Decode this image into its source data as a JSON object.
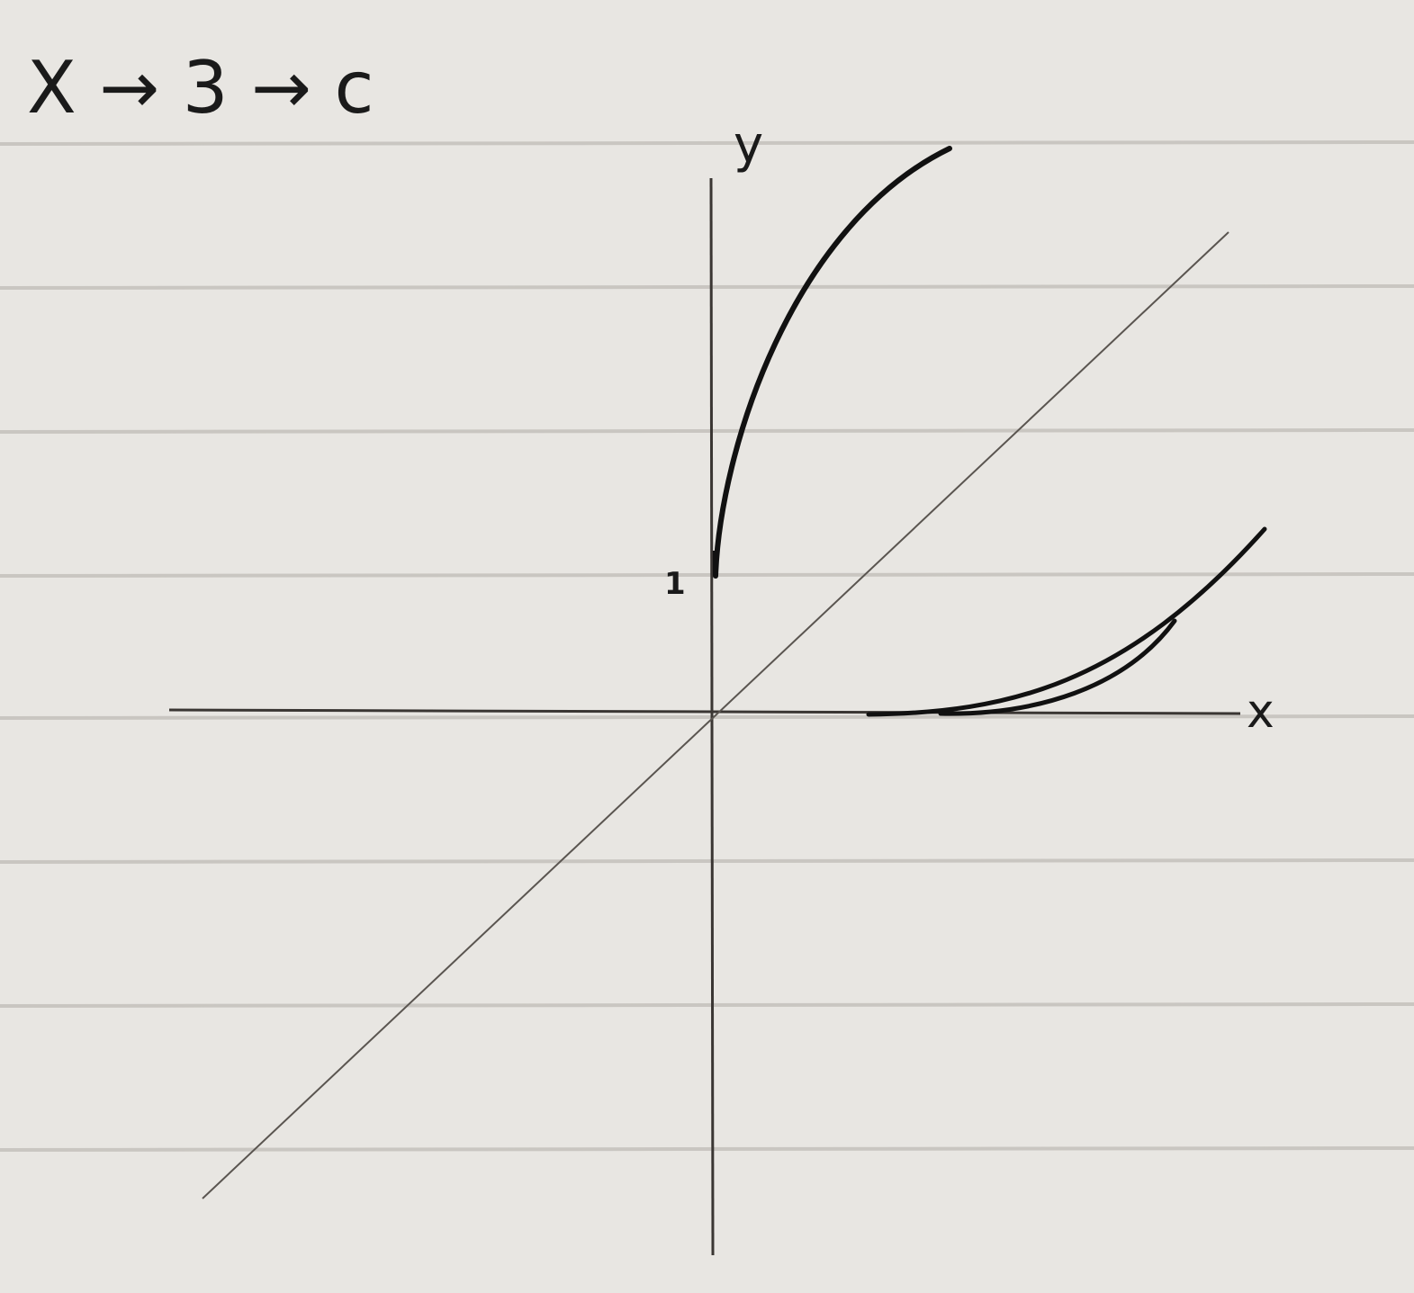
{
  "header": {
    "title": "X → 3 → c"
  },
  "axes": {
    "y_label": "y",
    "x_label": "x",
    "y_tick": "1"
  }
}
